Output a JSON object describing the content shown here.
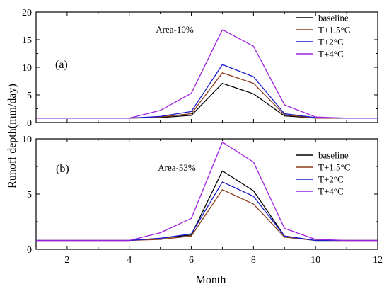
{
  "figure": {
    "ylabel": "Runoff depth(mm/day)",
    "xlabel": "Month"
  },
  "chart_data": [
    {
      "type": "line",
      "panel_label": "(a)",
      "annotation": "Area-10%",
      "xlim": [
        1,
        12
      ],
      "ylim": [
        0,
        20
      ],
      "x_ticks": [
        2,
        4,
        6,
        8,
        10,
        12
      ],
      "x_tick_labels_visible": false,
      "y_ticks": [
        0,
        5,
        10,
        15,
        20
      ],
      "legend_position": "top-right",
      "x": [
        1,
        2,
        3,
        4,
        5,
        6,
        7,
        8,
        9,
        10,
        11,
        12
      ],
      "series": [
        {
          "name": "baseline",
          "color": "#000000",
          "values": [
            0.8,
            0.8,
            0.8,
            0.8,
            0.9,
            1.3,
            7.1,
            5.2,
            1.2,
            0.8,
            0.8,
            0.8
          ]
        },
        {
          "name": "T+1.5°C",
          "color": "#8b3a1a",
          "values": [
            0.8,
            0.8,
            0.8,
            0.8,
            1.0,
            1.6,
            9.0,
            7.1,
            1.4,
            0.8,
            0.8,
            0.8
          ]
        },
        {
          "name": "T+2°C",
          "color": "#1a1acc",
          "values": [
            0.8,
            0.8,
            0.8,
            0.8,
            1.1,
            2.0,
            10.5,
            8.3,
            1.6,
            0.9,
            0.8,
            0.8
          ]
        },
        {
          "name": "T+4°C",
          "color": "#a020e0",
          "values": [
            0.8,
            0.8,
            0.8,
            0.8,
            2.2,
            5.3,
            16.8,
            13.8,
            3.2,
            1.0,
            0.8,
            0.8
          ]
        }
      ]
    },
    {
      "type": "line",
      "panel_label": "(b)",
      "annotation": "Area-53%",
      "xlim": [
        1,
        12
      ],
      "ylim": [
        0,
        10
      ],
      "x_ticks": [
        2,
        4,
        6,
        8,
        10,
        12
      ],
      "x_tick_labels_visible": true,
      "y_ticks": [
        0,
        5,
        10
      ],
      "legend_position": "top-right",
      "x": [
        1,
        2,
        3,
        4,
        5,
        6,
        7,
        8,
        9,
        10,
        11,
        12
      ],
      "series": [
        {
          "name": "baseline",
          "color": "#000000",
          "values": [
            0.8,
            0.8,
            0.8,
            0.8,
            1.0,
            1.3,
            7.1,
            5.3,
            1.2,
            0.8,
            0.8,
            0.8
          ]
        },
        {
          "name": "T+1.5°C",
          "color": "#8b3a1a",
          "values": [
            0.8,
            0.8,
            0.8,
            0.8,
            0.9,
            1.2,
            5.4,
            4.1,
            1.1,
            0.8,
            0.8,
            0.8
          ]
        },
        {
          "name": "T+2°C",
          "color": "#1a1acc",
          "values": [
            0.8,
            0.8,
            0.8,
            0.8,
            1.0,
            1.4,
            6.1,
            4.8,
            1.2,
            0.8,
            0.8,
            0.8
          ]
        },
        {
          "name": "T+4°C",
          "color": "#a020e0",
          "values": [
            0.8,
            0.8,
            0.8,
            0.8,
            1.5,
            2.8,
            9.7,
            7.9,
            1.9,
            0.9,
            0.8,
            0.8
          ]
        }
      ]
    }
  ]
}
